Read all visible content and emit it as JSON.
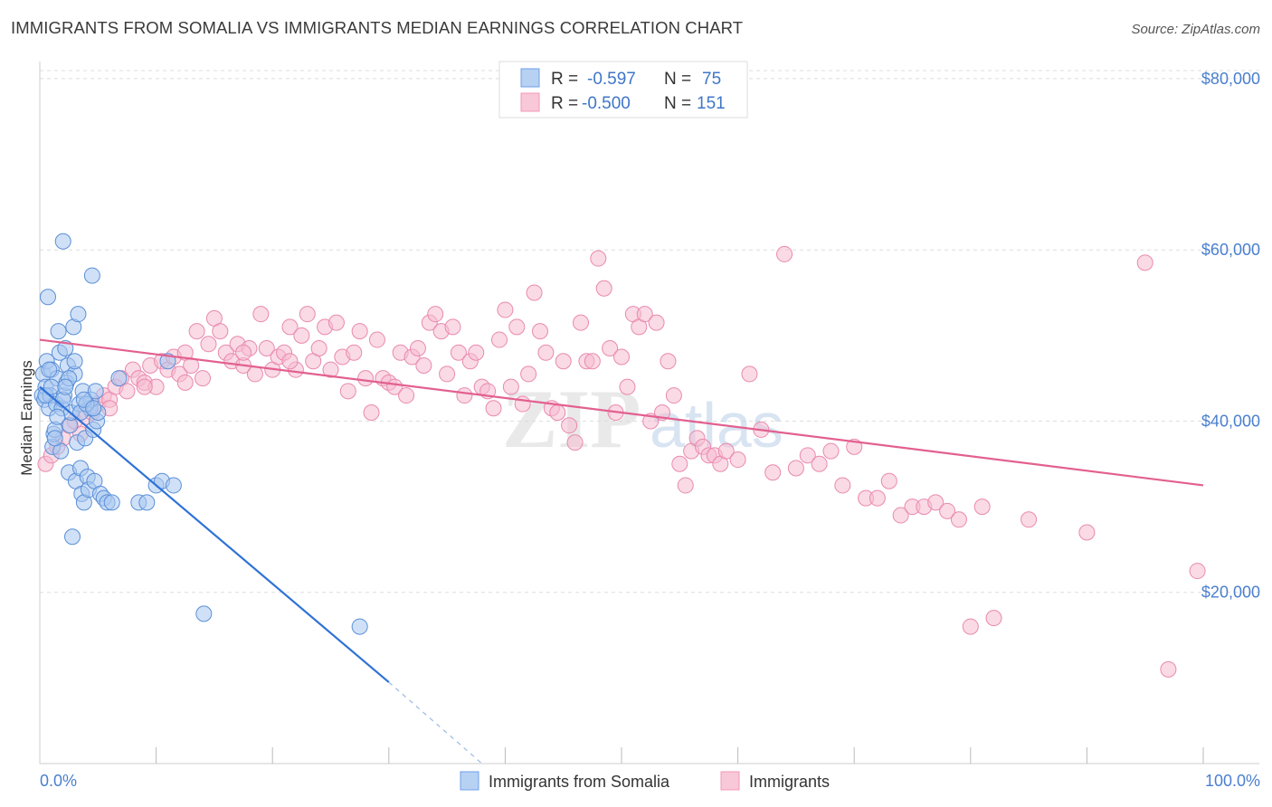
{
  "title": "IMMIGRANTS FROM SOMALIA VS IMMIGRANTS MEDIAN EARNINGS CORRELATION CHART",
  "source": "Source: ZipAtlas.com",
  "watermark": {
    "zip": "ZIP",
    "atlas": "atlas"
  },
  "legend_top": [
    {
      "r_label": "R =",
      "r_value": "-0.597",
      "n_label": "N =",
      "n_value": "75",
      "color": "#6fa0e8"
    },
    {
      "r_label": "R =",
      "r_value": "-0.500",
      "n_label": "N =",
      "n_value": "151",
      "color": "#f29ab8"
    }
  ],
  "colors": {
    "blue_fill": "#a9c8f0",
    "blue_stroke": "#5b8fd8",
    "blue_line": "#2f72d6",
    "pink_fill": "#f6bcd0",
    "pink_stroke": "#e98aae",
    "pink_line": "#e2608f",
    "axis_text": "#4a7fd0"
  },
  "chart_data": {
    "type": "scatter",
    "title": "IMMIGRANTS FROM SOMALIA VS IMMIGRANTS MEDIAN EARNINGS CORRELATION CHART",
    "xlabel": "",
    "ylabel": "Median Earnings",
    "x_tick_labels": [
      "0.0%",
      "100.0%"
    ],
    "y_ticks": [
      20000,
      40000,
      60000,
      80000
    ],
    "y_tick_labels": [
      "$20,000",
      "$40,000",
      "$60,000",
      "$80,000"
    ],
    "xlim": [
      0,
      100
    ],
    "ylim": [
      0,
      82000
    ],
    "grid": true,
    "legend_position": "bottom",
    "series": [
      {
        "name": "Immigrants from Somalia",
        "r": -0.597,
        "n": 75,
        "trend": {
          "x0": 0,
          "y0": 44000,
          "x1": 30,
          "y1": 9500,
          "dash_to_x": 38,
          "dash_to_y": 0
        },
        "points": [
          [
            0.2,
            43000
          ],
          [
            0.3,
            45500
          ],
          [
            0.4,
            42500
          ],
          [
            0.5,
            44000
          ],
          [
            0.6,
            47000
          ],
          [
            0.7,
            54500
          ],
          [
            0.8,
            41500
          ],
          [
            0.9,
            43000
          ],
          [
            1.0,
            46000
          ],
          [
            1.1,
            37000
          ],
          [
            1.2,
            38500
          ],
          [
            1.3,
            39000
          ],
          [
            1.4,
            42000
          ],
          [
            1.5,
            45000
          ],
          [
            1.6,
            50500
          ],
          [
            1.7,
            48000
          ],
          [
            1.8,
            36500
          ],
          [
            1.9,
            41500
          ],
          [
            2.0,
            61000
          ],
          [
            2.1,
            43000
          ],
          [
            2.2,
            48500
          ],
          [
            2.3,
            44500
          ],
          [
            2.4,
            46500
          ],
          [
            2.5,
            34000
          ],
          [
            2.6,
            39500
          ],
          [
            2.7,
            41000
          ],
          [
            2.8,
            26500
          ],
          [
            2.9,
            51000
          ],
          [
            3.0,
            45500
          ],
          [
            3.1,
            33000
          ],
          [
            3.2,
            37500
          ],
          [
            3.3,
            52500
          ],
          [
            3.4,
            42000
          ],
          [
            3.5,
            34500
          ],
          [
            3.6,
            31500
          ],
          [
            3.7,
            43500
          ],
          [
            3.8,
            30500
          ],
          [
            3.9,
            38000
          ],
          [
            4.0,
            42000
          ],
          [
            4.1,
            33500
          ],
          [
            4.2,
            32000
          ],
          [
            4.3,
            41500
          ],
          [
            4.4,
            42500
          ],
          [
            4.5,
            57000
          ],
          [
            4.6,
            39000
          ],
          [
            4.7,
            33000
          ],
          [
            4.8,
            43500
          ],
          [
            4.9,
            40000
          ],
          [
            5.0,
            41000
          ],
          [
            5.2,
            31500
          ],
          [
            5.5,
            31000
          ],
          [
            5.8,
            30500
          ],
          [
            6.2,
            30500
          ],
          [
            6.8,
            45000
          ],
          [
            8.5,
            30500
          ],
          [
            9.2,
            30500
          ],
          [
            10.0,
            32500
          ],
          [
            10.5,
            33000
          ],
          [
            11.0,
            47000
          ],
          [
            11.5,
            32500
          ],
          [
            14.1,
            17500
          ],
          [
            27.5,
            16000
          ],
          [
            0.5,
            43000
          ],
          [
            1.0,
            44000
          ],
          [
            1.5,
            40500
          ],
          [
            2.0,
            42500
          ],
          [
            2.5,
            45000
          ],
          [
            3.0,
            47000
          ],
          [
            3.5,
            41000
          ],
          [
            4.0,
            42000
          ],
          [
            0.8,
            46000
          ],
          [
            1.3,
            38000
          ],
          [
            2.2,
            44000
          ],
          [
            3.8,
            42500
          ],
          [
            4.6,
            41500
          ]
        ]
      },
      {
        "name": "Immigrants",
        "r": -0.5,
        "n": 151,
        "trend": {
          "x0": 0,
          "y0": 49500,
          "x1": 100,
          "y1": 32500
        },
        "points": [
          [
            0.5,
            35000
          ],
          [
            1.0,
            36000
          ],
          [
            1.5,
            37000
          ],
          [
            2.0,
            38000
          ],
          [
            2.5,
            39500
          ],
          [
            3.0,
            40000
          ],
          [
            3.5,
            38500
          ],
          [
            4.0,
            40500
          ],
          [
            4.5,
            41000
          ],
          [
            5.0,
            42000
          ],
          [
            5.5,
            43000
          ],
          [
            6.0,
            42500
          ],
          [
            6.5,
            44000
          ],
          [
            7.0,
            45000
          ],
          [
            7.5,
            43500
          ],
          [
            8.0,
            46000
          ],
          [
            8.5,
            45000
          ],
          [
            9.0,
            44500
          ],
          [
            9.5,
            46500
          ],
          [
            10.0,
            44000
          ],
          [
            10.5,
            47000
          ],
          [
            11.0,
            46000
          ],
          [
            11.5,
            47500
          ],
          [
            12.0,
            45500
          ],
          [
            12.5,
            48000
          ],
          [
            13.0,
            46500
          ],
          [
            13.5,
            50500
          ],
          [
            14.0,
            45000
          ],
          [
            14.5,
            49000
          ],
          [
            15.0,
            52000
          ],
          [
            15.5,
            50500
          ],
          [
            16.0,
            48000
          ],
          [
            16.5,
            47000
          ],
          [
            17.0,
            49000
          ],
          [
            17.5,
            46500
          ],
          [
            18.0,
            48500
          ],
          [
            18.5,
            45500
          ],
          [
            19.0,
            52500
          ],
          [
            19.5,
            48500
          ],
          [
            20.0,
            46000
          ],
          [
            20.5,
            47500
          ],
          [
            21.0,
            48000
          ],
          [
            21.5,
            51000
          ],
          [
            22.0,
            46000
          ],
          [
            22.5,
            50000
          ],
          [
            23.0,
            52500
          ],
          [
            23.5,
            47000
          ],
          [
            24.0,
            48500
          ],
          [
            24.5,
            51000
          ],
          [
            25.0,
            46000
          ],
          [
            25.5,
            51500
          ],
          [
            26.0,
            47500
          ],
          [
            26.5,
            43500
          ],
          [
            27.0,
            48000
          ],
          [
            27.5,
            50500
          ],
          [
            28.0,
            45000
          ],
          [
            28.5,
            41000
          ],
          [
            29.0,
            49500
          ],
          [
            29.5,
            45000
          ],
          [
            30.0,
            44500
          ],
          [
            30.5,
            44000
          ],
          [
            31.0,
            48000
          ],
          [
            31.5,
            43000
          ],
          [
            32.0,
            47500
          ],
          [
            32.5,
            48500
          ],
          [
            33.0,
            46500
          ],
          [
            33.5,
            51500
          ],
          [
            34.0,
            52500
          ],
          [
            34.5,
            50500
          ],
          [
            35.0,
            45500
          ],
          [
            35.5,
            51000
          ],
          [
            36.0,
            48000
          ],
          [
            36.5,
            43000
          ],
          [
            37.0,
            47000
          ],
          [
            37.5,
            48000
          ],
          [
            38.0,
            44000
          ],
          [
            38.5,
            43500
          ],
          [
            39.0,
            41500
          ],
          [
            39.5,
            49500
          ],
          [
            40.0,
            53000
          ],
          [
            40.5,
            44000
          ],
          [
            41.0,
            51000
          ],
          [
            41.5,
            42000
          ],
          [
            42.0,
            45500
          ],
          [
            42.5,
            55000
          ],
          [
            43.0,
            50500
          ],
          [
            43.5,
            48000
          ],
          [
            44.0,
            41500
          ],
          [
            44.5,
            41000
          ],
          [
            45.0,
            47000
          ],
          [
            45.5,
            39500
          ],
          [
            46.0,
            37500
          ],
          [
            46.5,
            51500
          ],
          [
            47.0,
            47000
          ],
          [
            47.5,
            47000
          ],
          [
            48.0,
            59000
          ],
          [
            48.5,
            55500
          ],
          [
            49.0,
            48500
          ],
          [
            49.5,
            41000
          ],
          [
            50.0,
            47500
          ],
          [
            50.5,
            44000
          ],
          [
            51.0,
            52500
          ],
          [
            51.5,
            51000
          ],
          [
            52.0,
            52500
          ],
          [
            52.5,
            40000
          ],
          [
            53.0,
            51500
          ],
          [
            53.5,
            41000
          ],
          [
            54.0,
            47000
          ],
          [
            54.5,
            43000
          ],
          [
            55.0,
            35000
          ],
          [
            55.5,
            32500
          ],
          [
            56.0,
            36500
          ],
          [
            56.5,
            38000
          ],
          [
            57.0,
            37000
          ],
          [
            57.5,
            36000
          ],
          [
            58.0,
            36000
          ],
          [
            58.5,
            35000
          ],
          [
            59.0,
            36500
          ],
          [
            60.0,
            35500
          ],
          [
            61.0,
            45500
          ],
          [
            62.0,
            39000
          ],
          [
            63.0,
            34000
          ],
          [
            64.0,
            59500
          ],
          [
            65.0,
            34500
          ],
          [
            66.0,
            36000
          ],
          [
            67.0,
            35000
          ],
          [
            68.0,
            36500
          ],
          [
            69.0,
            32500
          ],
          [
            70.0,
            37000
          ],
          [
            71.0,
            31000
          ],
          [
            72.0,
            31000
          ],
          [
            73.0,
            33000
          ],
          [
            74.0,
            29000
          ],
          [
            75.0,
            30000
          ],
          [
            76.0,
            30000
          ],
          [
            77.0,
            30500
          ],
          [
            78.0,
            29500
          ],
          [
            79.0,
            28500
          ],
          [
            80.0,
            16000
          ],
          [
            81.0,
            30000
          ],
          [
            82.0,
            17000
          ],
          [
            85.0,
            28500
          ],
          [
            90.0,
            27000
          ],
          [
            95.0,
            58500
          ],
          [
            97.0,
            11000
          ],
          [
            99.5,
            22500
          ],
          [
            6.0,
            41500
          ],
          [
            9.0,
            44000
          ],
          [
            12.5,
            44500
          ],
          [
            17.5,
            48000
          ],
          [
            21.5,
            47000
          ]
        ]
      }
    ]
  },
  "bottom_legend": [
    "Immigrants from Somalia",
    "Immigrants"
  ]
}
